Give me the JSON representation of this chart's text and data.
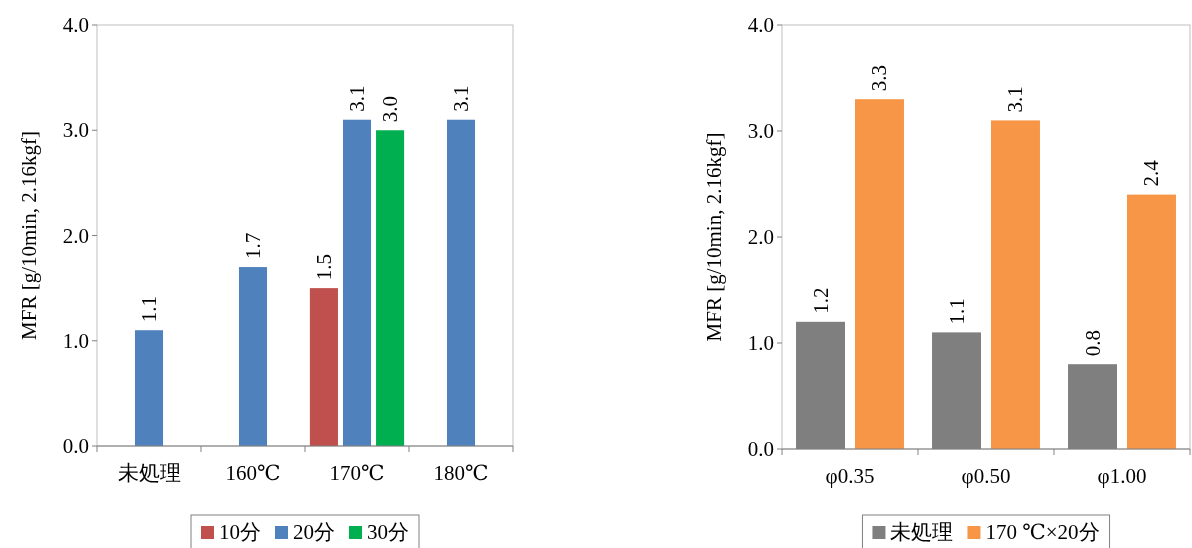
{
  "chart_data": [
    {
      "type": "bar",
      "categories": [
        "未処理",
        "160℃",
        "170℃",
        "180℃"
      ],
      "series": [
        {
          "name": "10分",
          "color": "#c0504d",
          "values": [
            null,
            null,
            1.5,
            null
          ]
        },
        {
          "name": "20分",
          "color": "#4f81bd",
          "values": [
            1.1,
            1.7,
            3.1,
            3.1
          ]
        },
        {
          "name": "30分",
          "color": "#00b050",
          "values": [
            null,
            null,
            3.0,
            null
          ],
          "value_labels": [
            null,
            null,
            "3.0",
            null
          ]
        }
      ],
      "ylim": [
        0,
        4
      ],
      "yticks": [
        {
          "value": 0,
          "label": "0.0"
        },
        {
          "value": 1,
          "label": "1.0"
        },
        {
          "value": 2,
          "label": "2.0"
        },
        {
          "value": 3,
          "label": "3.0"
        },
        {
          "value": 4,
          "label": "4.0"
        }
      ],
      "ylabel": "MFR [g/10min,  2.16kgf]",
      "data_labels": true,
      "legend": "bottom"
    },
    {
      "type": "bar",
      "categories": [
        "φ0.35",
        "φ0.50",
        "φ1.00"
      ],
      "series": [
        {
          "name": "未処理",
          "color": "#7f7f7f",
          "values": [
            1.2,
            1.1,
            0.8
          ]
        },
        {
          "name": "170 ℃×20分",
          "color": "#f79646",
          "values": [
            3.3,
            3.1,
            2.4
          ]
        }
      ],
      "ylim": [
        0,
        4
      ],
      "yticks": [
        {
          "value": 0,
          "label": "0.0"
        },
        {
          "value": 1,
          "label": "1.0"
        },
        {
          "value": 2,
          "label": "2.0"
        },
        {
          "value": 3,
          "label": "3.0"
        },
        {
          "value": 4,
          "label": "4.0"
        }
      ],
      "ylabel": "MFR [g/10min,  2.16kgf]",
      "data_labels": true,
      "legend": "bottom"
    }
  ]
}
